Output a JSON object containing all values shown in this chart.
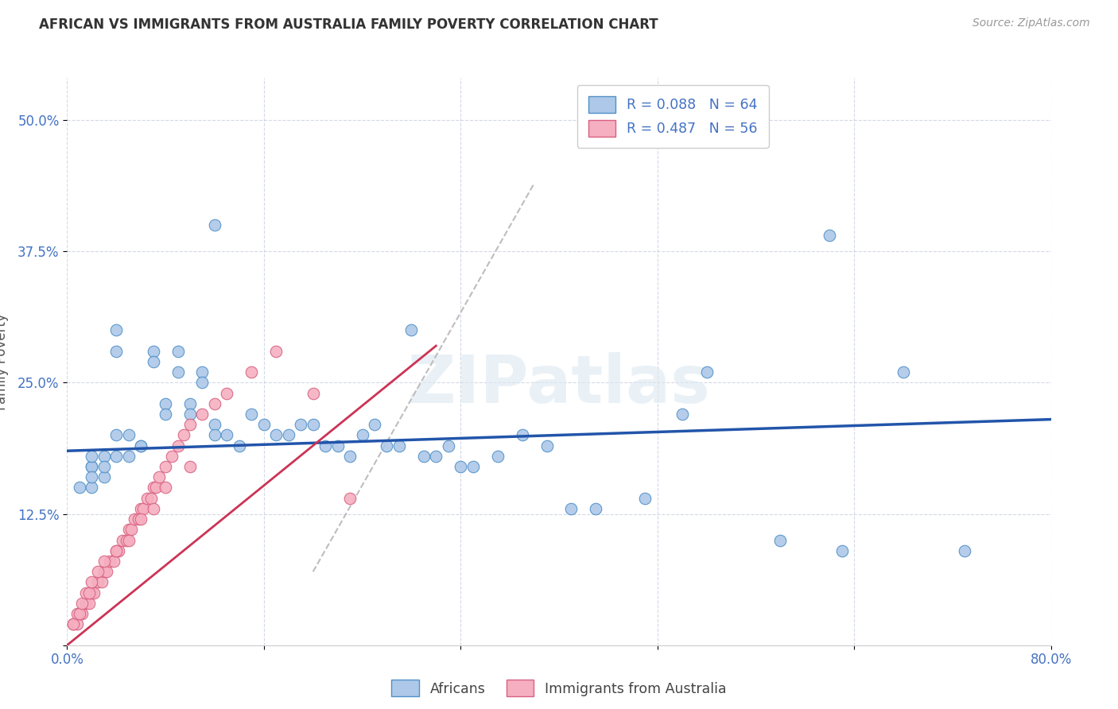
{
  "title": "AFRICAN VS IMMIGRANTS FROM AUSTRALIA FAMILY POVERTY CORRELATION CHART",
  "source": "Source: ZipAtlas.com",
  "ylabel": "Family Poverty",
  "xlim": [
    0.0,
    0.8
  ],
  "ylim": [
    0.0,
    0.54
  ],
  "legend_r_african": "R = 0.088",
  "legend_n_african": "N = 64",
  "legend_r_australia": "R = 0.487",
  "legend_n_australia": "N = 56",
  "color_african_fill": "#adc8e8",
  "color_african_edge": "#5090c8",
  "color_australia_fill": "#f5afc0",
  "color_australia_edge": "#d86080",
  "color_line_african": "#2255aa",
  "color_line_australia": "#cc3355",
  "color_trendline_gray": "#c8c0c0",
  "color_axis_blue": "#4472c4",
  "color_title": "#333333",
  "watermark_text": "ZIPatlas",
  "african_x": [
    0.28,
    0.12,
    0.62,
    0.04,
    0.04,
    0.02,
    0.03,
    0.02,
    0.02,
    0.01,
    0.02,
    0.02,
    0.03,
    0.03,
    0.04,
    0.04,
    0.05,
    0.05,
    0.06,
    0.06,
    0.07,
    0.07,
    0.08,
    0.08,
    0.09,
    0.09,
    0.1,
    0.1,
    0.11,
    0.11,
    0.12,
    0.12,
    0.13,
    0.14,
    0.15,
    0.16,
    0.17,
    0.18,
    0.19,
    0.2,
    0.21,
    0.22,
    0.23,
    0.24,
    0.25,
    0.26,
    0.27,
    0.29,
    0.3,
    0.31,
    0.32,
    0.33,
    0.35,
    0.37,
    0.39,
    0.41,
    0.43,
    0.47,
    0.52,
    0.58,
    0.63,
    0.68,
    0.73,
    0.5
  ],
  "african_y": [
    0.3,
    0.4,
    0.39,
    0.3,
    0.28,
    0.17,
    0.16,
    0.15,
    0.17,
    0.15,
    0.18,
    0.16,
    0.18,
    0.17,
    0.2,
    0.18,
    0.2,
    0.18,
    0.19,
    0.19,
    0.28,
    0.27,
    0.23,
    0.22,
    0.28,
    0.26,
    0.23,
    0.22,
    0.26,
    0.25,
    0.21,
    0.2,
    0.2,
    0.19,
    0.22,
    0.21,
    0.2,
    0.2,
    0.21,
    0.21,
    0.19,
    0.19,
    0.18,
    0.2,
    0.21,
    0.19,
    0.19,
    0.18,
    0.18,
    0.19,
    0.17,
    0.17,
    0.18,
    0.2,
    0.19,
    0.13,
    0.13,
    0.14,
    0.26,
    0.1,
    0.09,
    0.26,
    0.09,
    0.22
  ],
  "australia_x": [
    0.005,
    0.008,
    0.01,
    0.012,
    0.015,
    0.018,
    0.02,
    0.022,
    0.025,
    0.028,
    0.03,
    0.032,
    0.035,
    0.038,
    0.04,
    0.042,
    0.045,
    0.048,
    0.05,
    0.052,
    0.055,
    0.058,
    0.06,
    0.062,
    0.065,
    0.068,
    0.07,
    0.072,
    0.075,
    0.08,
    0.085,
    0.09,
    0.095,
    0.1,
    0.11,
    0.12,
    0.13,
    0.15,
    0.17,
    0.2,
    0.005,
    0.008,
    0.01,
    0.012,
    0.015,
    0.018,
    0.02,
    0.025,
    0.03,
    0.04,
    0.05,
    0.06,
    0.07,
    0.08,
    0.1,
    0.23
  ],
  "australia_y": [
    0.02,
    0.02,
    0.03,
    0.03,
    0.04,
    0.04,
    0.05,
    0.05,
    0.06,
    0.06,
    0.07,
    0.07,
    0.08,
    0.08,
    0.09,
    0.09,
    0.1,
    0.1,
    0.11,
    0.11,
    0.12,
    0.12,
    0.13,
    0.13,
    0.14,
    0.14,
    0.15,
    0.15,
    0.16,
    0.17,
    0.18,
    0.19,
    0.2,
    0.21,
    0.22,
    0.23,
    0.24,
    0.26,
    0.28,
    0.24,
    0.02,
    0.03,
    0.03,
    0.04,
    0.05,
    0.05,
    0.06,
    0.07,
    0.08,
    0.09,
    0.1,
    0.12,
    0.13,
    0.15,
    0.17,
    0.14
  ],
  "african_line_x0": 0.0,
  "african_line_y0": 0.185,
  "african_line_x1": 0.8,
  "african_line_y1": 0.215,
  "aus_line_x0": 0.0,
  "aus_line_y0": 0.0,
  "aus_line_x1": 0.3,
  "aus_line_y1": 0.285,
  "gray_line_x0": 0.2,
  "gray_line_y0": 0.07,
  "gray_line_x1": 0.38,
  "gray_line_y1": 0.44
}
